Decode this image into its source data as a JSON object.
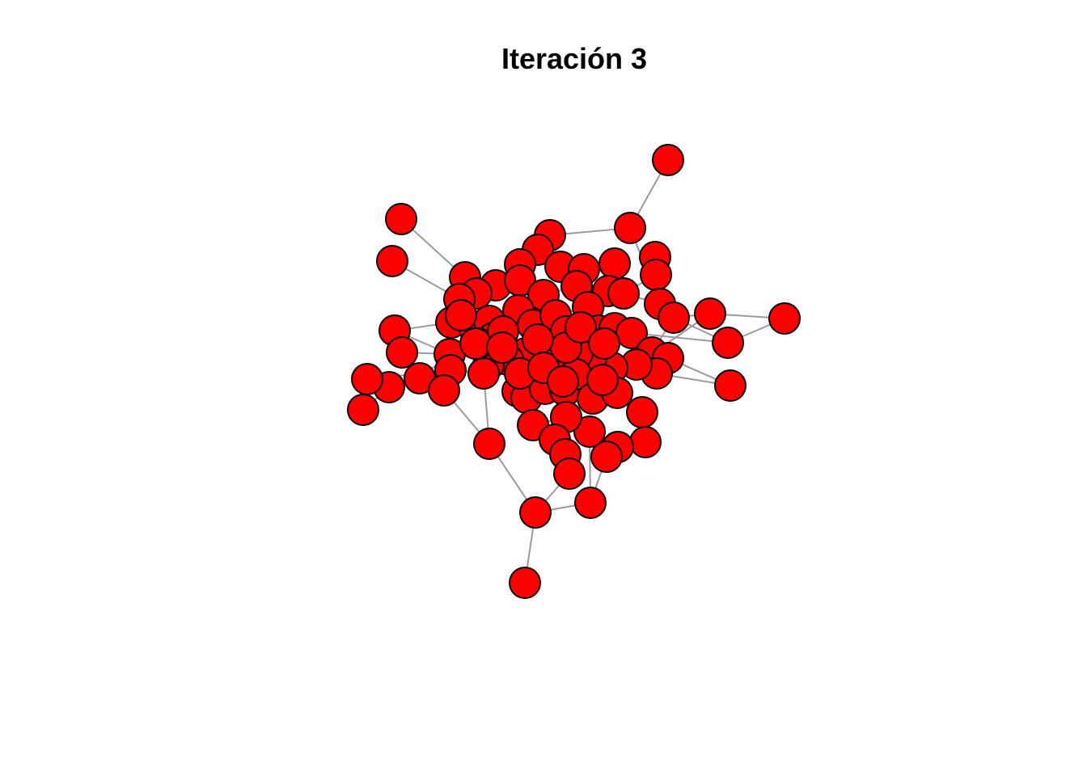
{
  "title": "Iteración 3",
  "colors": {
    "node_fill": "#ff0000",
    "node_stroke": "#000000",
    "edge": "#9a9a9a"
  }
}
